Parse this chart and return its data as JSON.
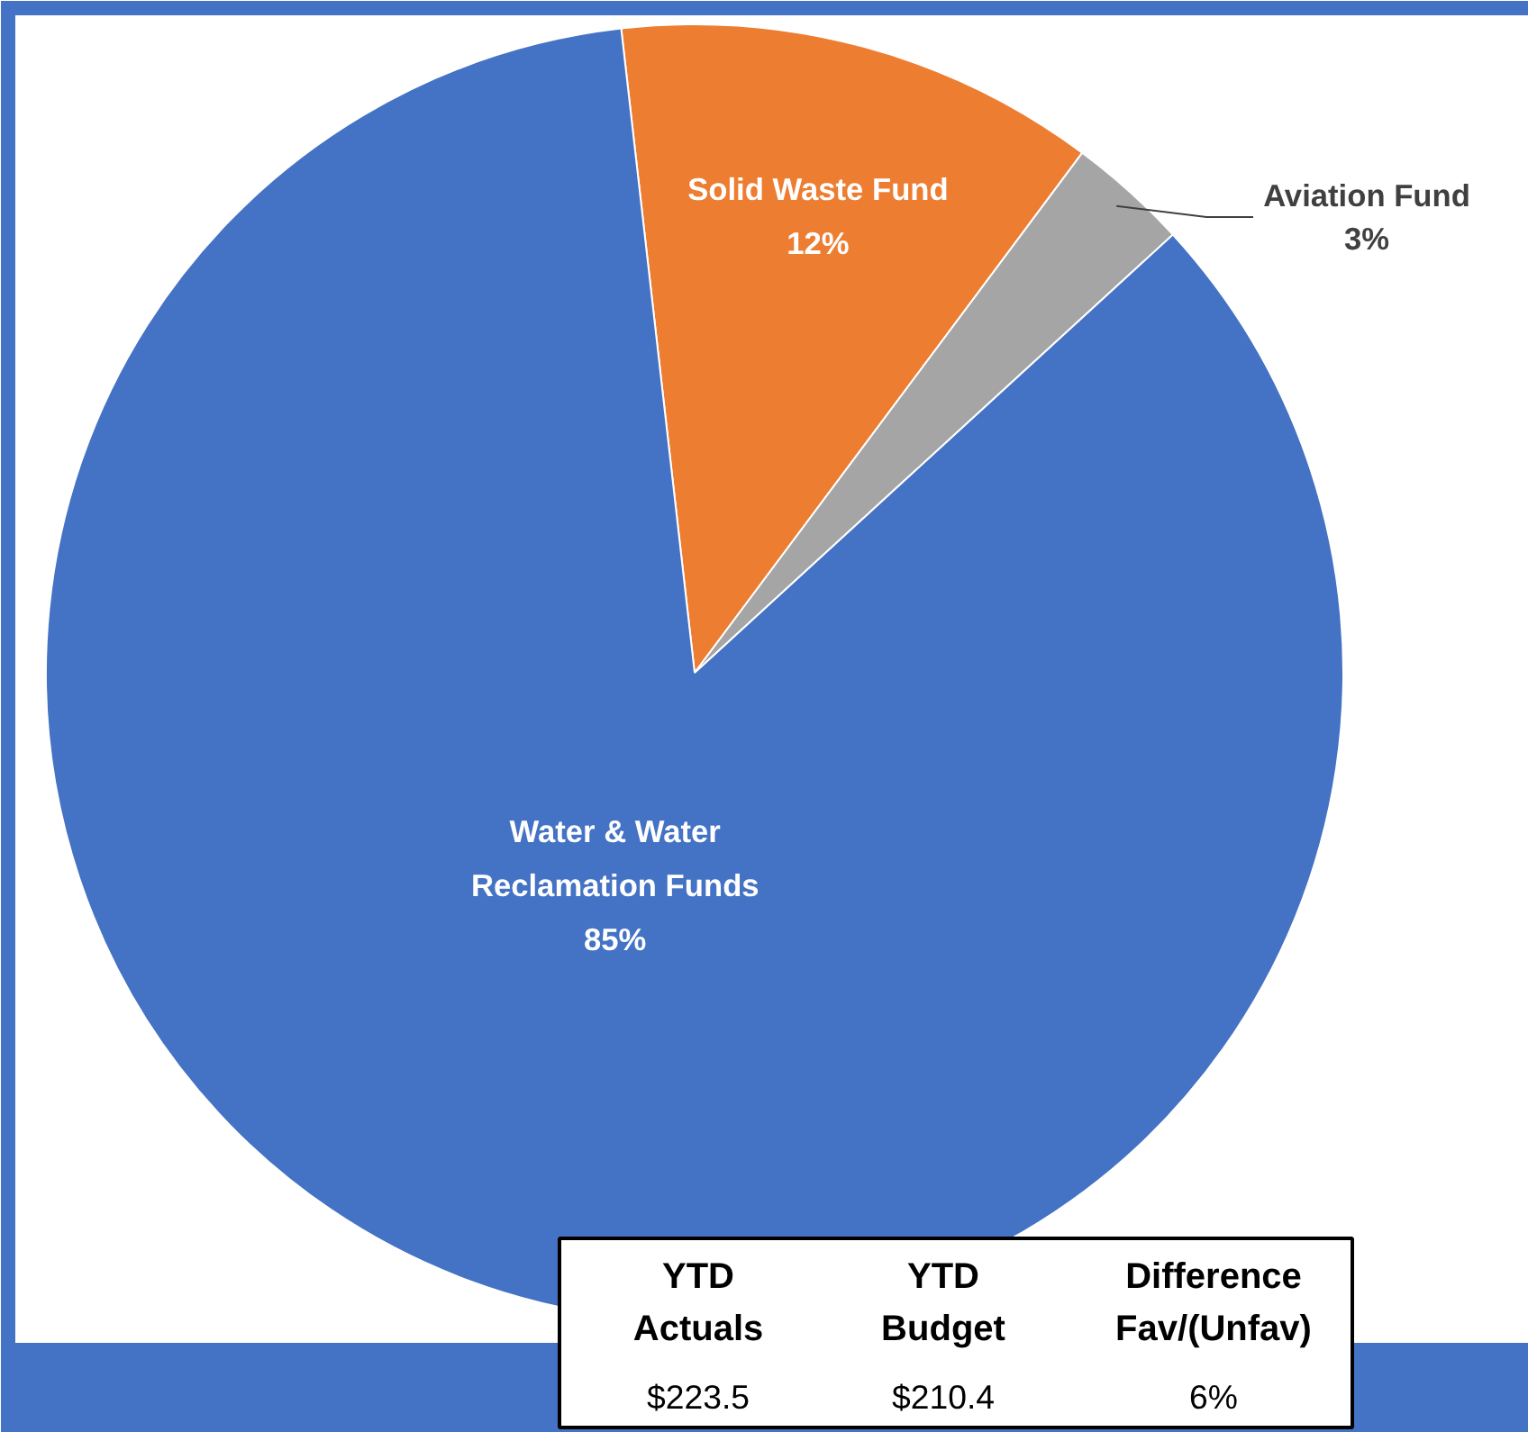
{
  "chart_data": {
    "type": "pie",
    "categories": [
      "Solid Waste Fund",
      "Aviation Fund",
      "Water & Water Reclamation Funds"
    ],
    "values": [
      12,
      3,
      85
    ],
    "colors": [
      "#ed7d31",
      "#a5a5a5",
      "#4472c4"
    ],
    "value_labels": [
      "12%",
      "3%",
      "85%"
    ],
    "annotations": [
      "YTD\nActuals",
      "YTD\nBudget",
      "Difference\nFav/(Unfav)",
      "$223.5",
      "$210.4",
      "6%"
    ]
  }
}
